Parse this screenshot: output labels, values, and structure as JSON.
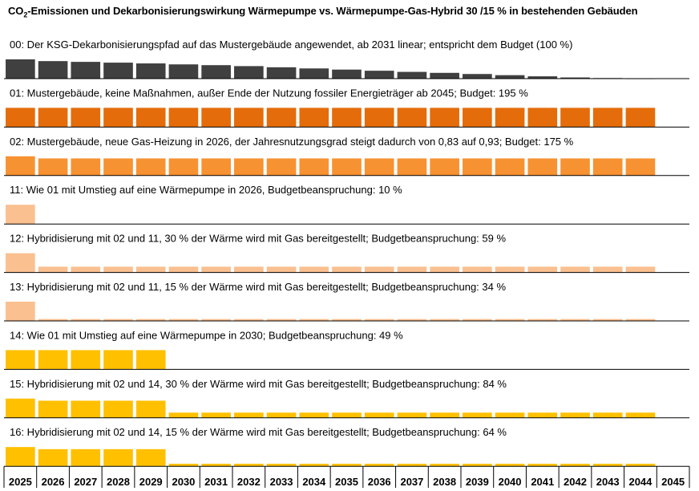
{
  "chart_data": {
    "type": "bar",
    "title_prefix": "CO",
    "title_sub": "2",
    "title_rest": "-Emissionen und Dekarbonisierungswirkung Wärmepumpe vs. Wärmepumpe-Gas-Hybrid 30 /15 %  in bestehenden Gebäuden",
    "categories": [
      "2025",
      "2026",
      "2027",
      "2028",
      "2029",
      "2030",
      "2031",
      "2032",
      "2033",
      "2034",
      "2035",
      "2036",
      "2037",
      "2038",
      "2039",
      "2040",
      "2041",
      "2042",
      "2043",
      "2044",
      "2045"
    ],
    "ylim": [
      0,
      1
    ],
    "series": [
      {
        "name": "00: Der KSG-Dekarbonisierungspfad auf das Mustergebäude angewendet, ab 2031 linear; entspricht dem Budget (100 %)",
        "color": "#404040",
        "values": [
          1.0,
          0.91,
          0.87,
          0.83,
          0.79,
          0.74,
          0.7,
          0.65,
          0.59,
          0.53,
          0.47,
          0.41,
          0.35,
          0.3,
          0.24,
          0.18,
          0.12,
          0.06,
          0.03,
          0.01,
          0
        ]
      },
      {
        "name": "01: Mustergebäude, keine Maßnahmen, außer  Ende der Nutzung fossiler Energieträger ab 2045; Budget:  195 %",
        "color": "#E46C0A",
        "values": [
          1.0,
          1.0,
          1.0,
          1.0,
          1.0,
          1.0,
          1.0,
          1.0,
          1.0,
          1.0,
          1.0,
          1.0,
          1.0,
          1.0,
          1.0,
          1.0,
          1.0,
          1.0,
          1.0,
          1.0,
          0
        ]
      },
      {
        "name": "02: Mustergebäude, neue Gas-Heizung in 2026, der Jahresnutzungsgrad steigt dadurch von 0,83 auf 0,93; Budget: 175 %",
        "color": "#F79232",
        "values": [
          1.0,
          0.89,
          0.89,
          0.89,
          0.89,
          0.89,
          0.89,
          0.89,
          0.89,
          0.89,
          0.89,
          0.89,
          0.89,
          0.89,
          0.89,
          0.89,
          0.89,
          0.89,
          0.89,
          0.89,
          0
        ]
      },
      {
        "name": "11: Wie 01 mit Umstieg auf eine Wärmepumpe in 2026, Budgetbeanspruchung:  10 %",
        "color": "#FAC090",
        "values": [
          1.0,
          0,
          0,
          0,
          0,
          0,
          0,
          0,
          0,
          0,
          0,
          0,
          0,
          0,
          0,
          0,
          0,
          0,
          0,
          0,
          0
        ]
      },
      {
        "name": "12: Hybridisierung mit 02 und 11, 30 % der Wärme wird mit Gas bereitgestellt;  Budgetbeanspruchung: 59 %",
        "color": "#FAC090",
        "values": [
          1.0,
          0.3,
          0.3,
          0.3,
          0.3,
          0.3,
          0.3,
          0.3,
          0.3,
          0.3,
          0.3,
          0.3,
          0.3,
          0.3,
          0.3,
          0.3,
          0.3,
          0.3,
          0.3,
          0.3,
          0
        ]
      },
      {
        "name": "13: Hybridisierung mit 02 und 11, 15 % der Wärme wird mit Gas bereitgestellt;  Budgetbeanspruchung: 34 %",
        "color": "#FAC090",
        "values": [
          1.0,
          0.1,
          0.1,
          0.1,
          0.1,
          0.1,
          0.1,
          0.1,
          0.1,
          0.1,
          0.1,
          0.1,
          0.1,
          0.1,
          0.1,
          0.1,
          0.1,
          0.1,
          0.1,
          0.1,
          0
        ]
      },
      {
        "name": "14: Wie 01 mit Umstieg auf eine Wärmepumpe in 2030; Budgetbeanspruchung:  49 %",
        "color": "#FFC000",
        "values": [
          1.0,
          1.0,
          1.0,
          1.0,
          1.0,
          0,
          0,
          0,
          0,
          0,
          0,
          0,
          0,
          0,
          0,
          0,
          0,
          0,
          0,
          0,
          0
        ]
      },
      {
        "name": "15: Hybridisierung mit 02 und 14, 30 % der Wärme wird mit Gas bereitgestellt;  Budgetbeanspruchung: 84 %",
        "color": "#FFC000",
        "values": [
          1.0,
          0.89,
          0.89,
          0.89,
          0.89,
          0.27,
          0.27,
          0.27,
          0.27,
          0.27,
          0.27,
          0.27,
          0.27,
          0.27,
          0.27,
          0.27,
          0.27,
          0.27,
          0.27,
          0.27,
          0
        ]
      },
      {
        "name": "16: Hybridisierung mit 02 und 14, 15  % der Wärme wird mit Gas bereitgestellt;  Budgetbeanspruchung: 64 %",
        "color": "#FFC000",
        "values": [
          1.0,
          0.89,
          0.89,
          0.89,
          0.89,
          0.13,
          0.13,
          0.13,
          0.13,
          0.13,
          0.13,
          0.13,
          0.13,
          0.13,
          0.13,
          0.13,
          0.13,
          0.13,
          0.13,
          0.13,
          0
        ]
      }
    ]
  }
}
